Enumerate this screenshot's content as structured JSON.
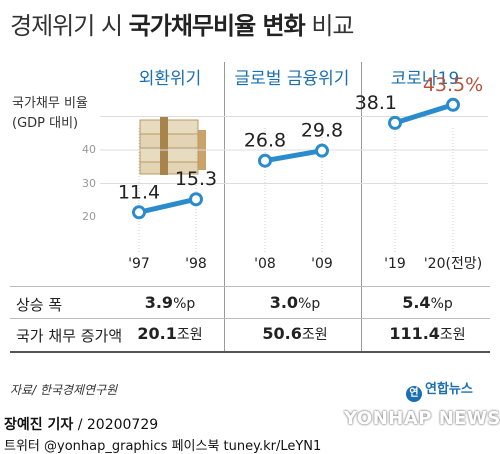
{
  "header": {
    "title_prefix": "경제위기 시",
    "title_bold": "국가채무비율 변화",
    "title_suffix": "비교"
  },
  "panels": [
    {
      "title": "외환위기"
    },
    {
      "title": "글로벌 금융위기"
    },
    {
      "title": "코로나19"
    }
  ],
  "y_axis": {
    "label_line1": "국가채무 비율",
    "label_line2": "(GDP 대비)"
  },
  "chart_data": {
    "type": "line",
    "ylabel": "국가채무 비율 (GDP 대비)",
    "ylim": [
      10,
      50
    ],
    "yticks": [
      20,
      30,
      40
    ],
    "grid": true,
    "series": [
      {
        "name": "외환위기",
        "x": [
          "'97",
          "'98"
        ],
        "values": [
          11.4,
          15.3
        ],
        "labels": [
          "11.4",
          "15.3"
        ]
      },
      {
        "name": "글로벌 금융위기",
        "x": [
          "'08",
          "'09"
        ],
        "values": [
          26.8,
          29.8
        ],
        "labels": [
          "26.8",
          "29.8"
        ]
      },
      {
        "name": "코로나19",
        "x": [
          "'19",
          "'20(전망)"
        ],
        "values": [
          38.1,
          43.5
        ],
        "labels": [
          "38.1",
          "43.5%"
        ]
      }
    ],
    "line_color": "#2a8ccc",
    "highlight_color": "#b5533c"
  },
  "table": {
    "row1_label": "상승 폭",
    "row2_label": "국가 채무 증가액",
    "rise": [
      {
        "num": "3.9",
        "unit": "%p"
      },
      {
        "num": "3.0",
        "unit": "%p"
      },
      {
        "num": "5.4",
        "unit": "%p"
      }
    ],
    "increase": [
      {
        "num": "20.1",
        "unit": "조원"
      },
      {
        "num": "50.6",
        "unit": "조원"
      },
      {
        "num": "111.4",
        "unit": "조원"
      }
    ]
  },
  "footer": {
    "source": "자료/ 한국경제연구원",
    "logo": "연합뉴스",
    "logo_mark": "연",
    "reporter": "장예진 기자",
    "date": " / 20200729",
    "social": "트위터 @yonhap_graphics  페이스북 tuney.kr/LeYN1",
    "agency": "YONHAP NEWS"
  }
}
